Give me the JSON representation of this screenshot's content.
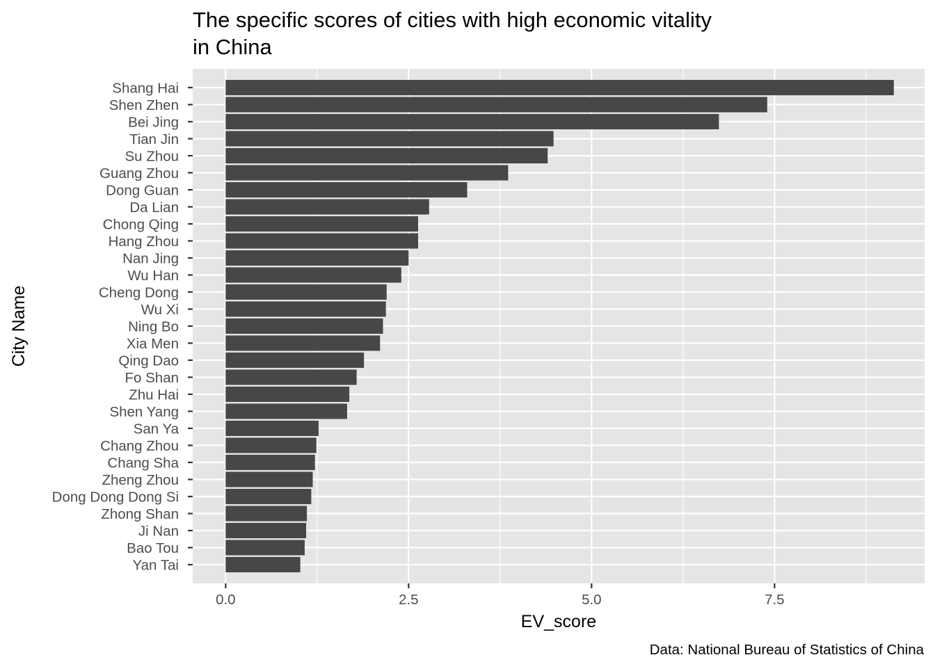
{
  "chart_data": {
    "type": "bar",
    "orientation": "horizontal",
    "title_lines": [
      "The specific scores of cities with high economic vitality",
      "in China"
    ],
    "xlabel": "EV_score",
    "ylabel": "City Name",
    "caption": "Data: National Bureau of Statistics of China",
    "xlim": [
      -0.45,
      9.55
    ],
    "xticks": [
      0.0,
      2.5,
      5.0,
      7.5
    ],
    "xtick_labels": [
      "0.0",
      "2.5",
      "5.0",
      "7.5"
    ],
    "grid": true,
    "categories": [
      "Shang Hai",
      "Shen Zhen",
      "Bei Jing",
      "Tian Jin",
      "Su Zhou",
      "Guang Zhou",
      "Dong Guan",
      "Da Lian",
      "Chong Qing",
      "Hang Zhou",
      "Nan Jing",
      "Wu Han",
      "Cheng Dong",
      "Wu Xi",
      "Ning Bo",
      "Xia Men",
      "Qing Dao",
      "Fo Shan",
      "Zhu Hai",
      "Shen Yang",
      "San Ya",
      "Chang Zhou",
      "Chang Sha",
      "Zheng Zhou",
      "Dong Dong Dong Si",
      "Zhong Shan",
      "Ji Nan",
      "Bao Tou",
      "Yan Tai"
    ],
    "values": [
      9.13,
      7.4,
      6.74,
      4.48,
      4.4,
      3.86,
      3.3,
      2.78,
      2.63,
      2.63,
      2.5,
      2.4,
      2.2,
      2.19,
      2.15,
      2.11,
      1.89,
      1.79,
      1.69,
      1.66,
      1.27,
      1.24,
      1.22,
      1.19,
      1.17,
      1.11,
      1.1,
      1.08,
      1.02
    ],
    "bar_color": "#474747",
    "panel_color": "#e5e5e5",
    "grid_color": "#ffffff"
  }
}
